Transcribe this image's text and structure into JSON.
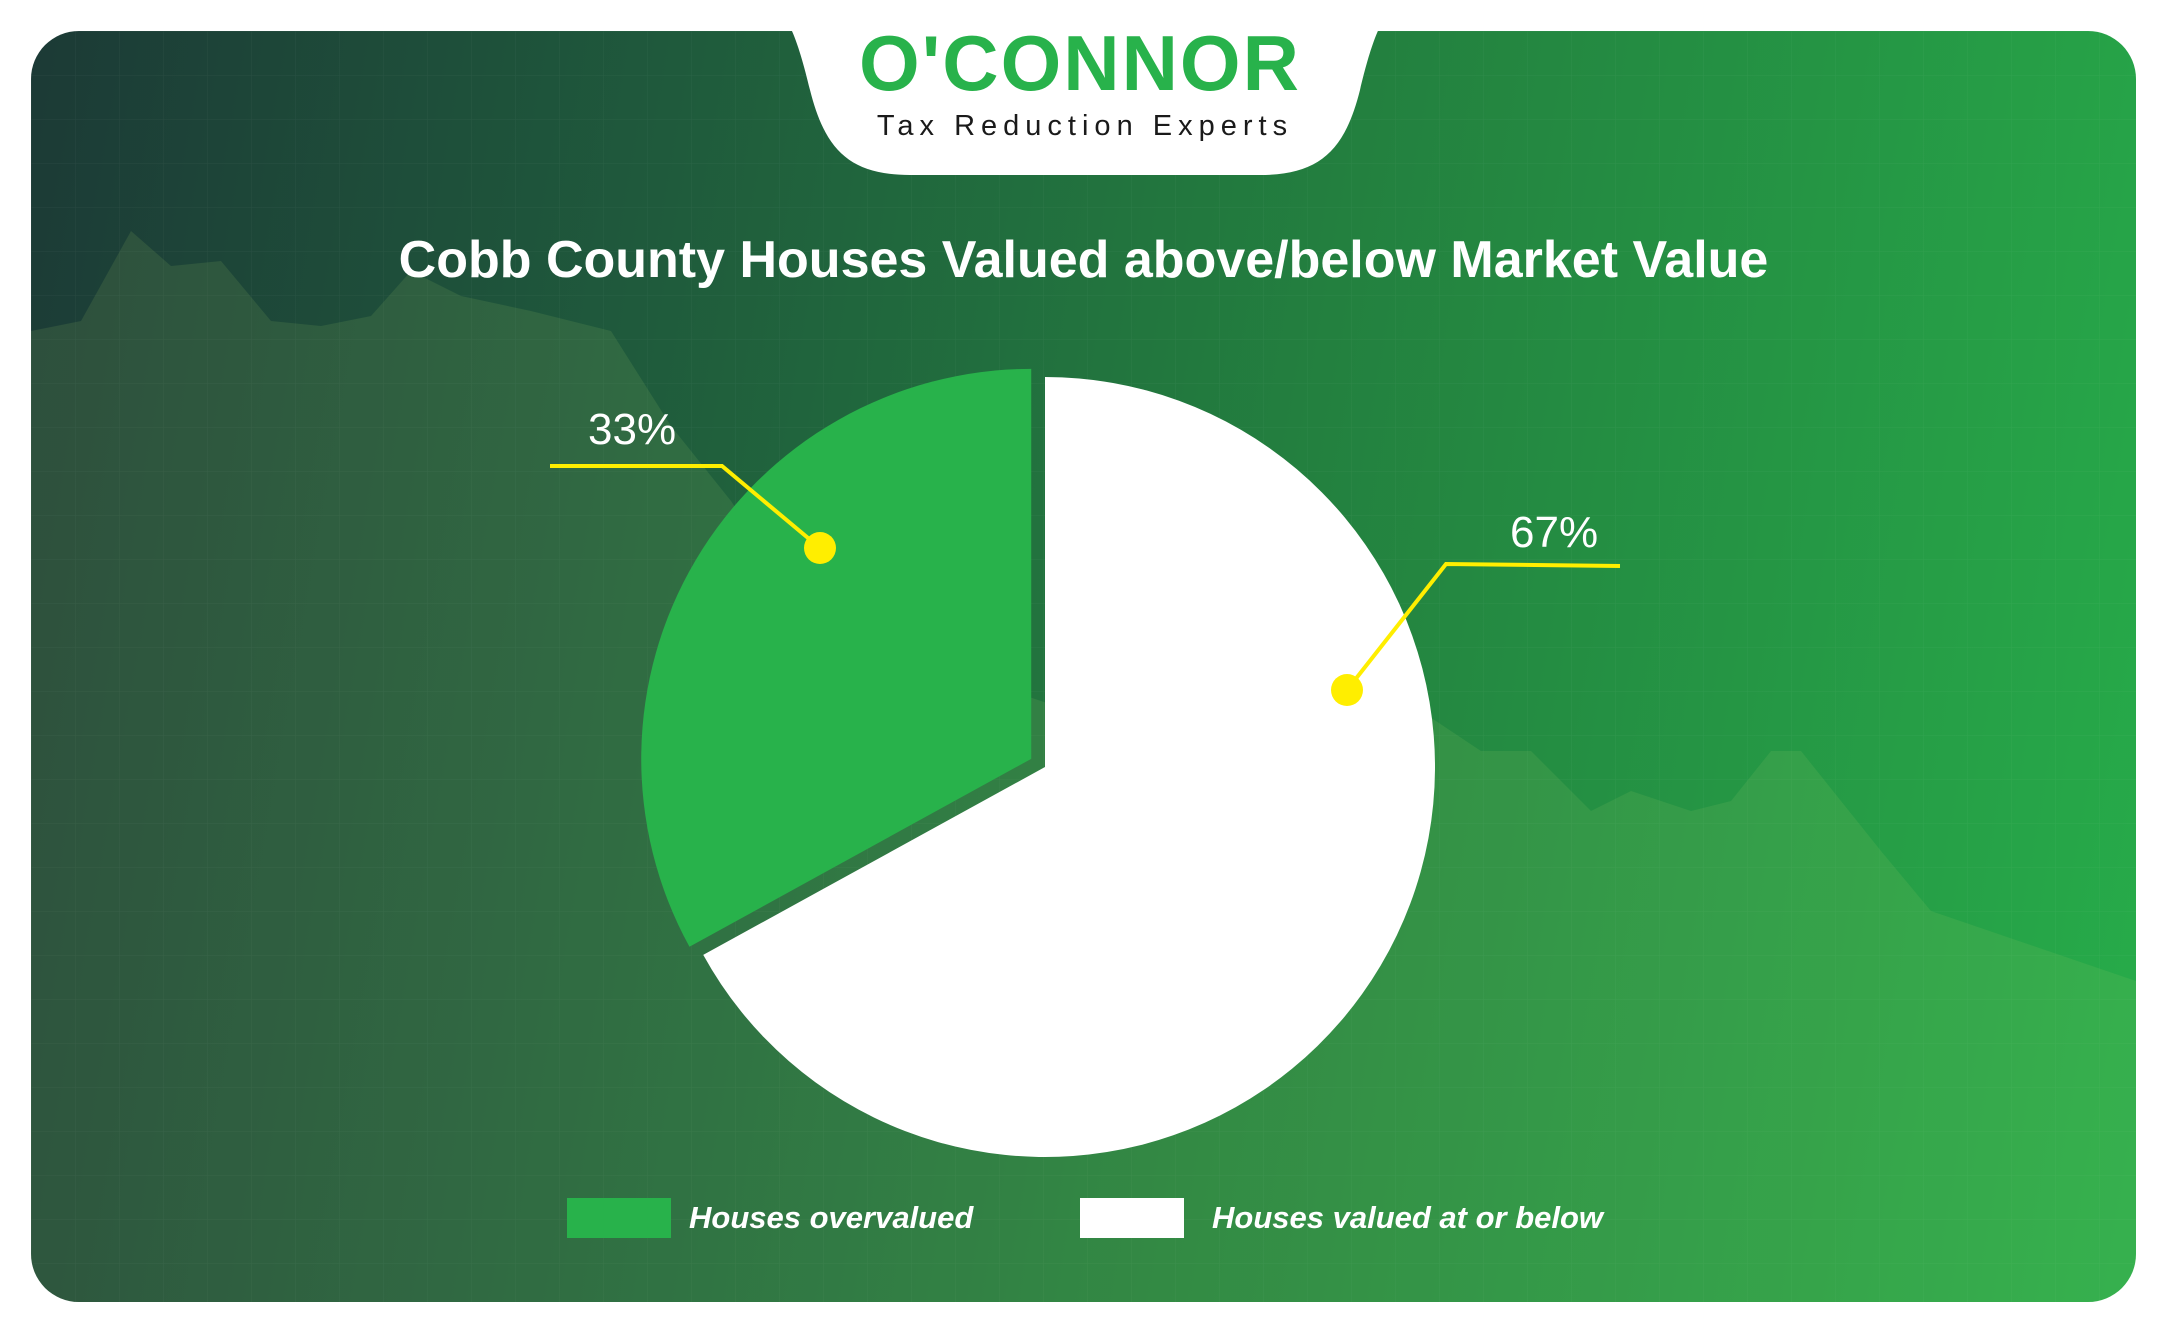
{
  "logo": {
    "brand": "O'CONNOR",
    "tagline": "Tax Reduction Experts"
  },
  "colors": {
    "overvalued": "#28b24b",
    "valued_at_or_below": "#ffffff",
    "callout": "#ffee00",
    "brand_green": "#28b24b"
  },
  "chart_data": {
    "type": "pie",
    "title": "Cobb County Houses Valued above/below Market Value",
    "slices": [
      {
        "label": "Houses overvalued",
        "value": 33,
        "display": "33%",
        "color": "#28b24b"
      },
      {
        "label": "Houses valued at or below",
        "value": 67,
        "display": "67%",
        "color": "#ffffff"
      }
    ],
    "legend": {
      "position": "bottom",
      "items": [
        "Houses overvalued",
        "Houses valued at or below"
      ]
    }
  }
}
